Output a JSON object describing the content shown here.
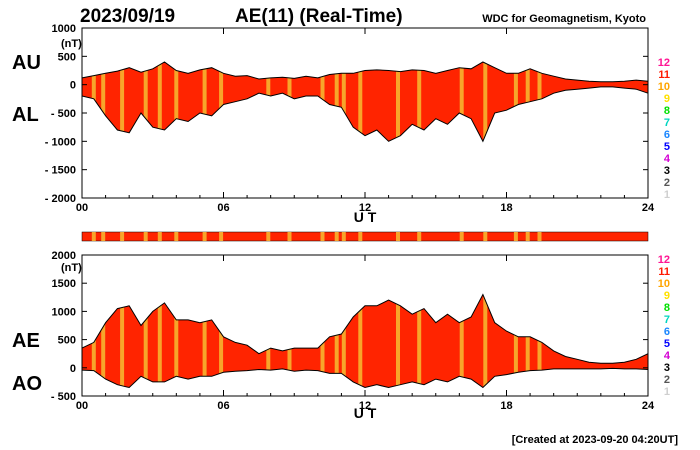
{
  "header": {
    "date": "2023/09/19",
    "title": "AE(11) (Real-Time)",
    "source": "WDC for Geomagnetism, Kyoto"
  },
  "footer": {
    "created": "[Created at 2023-09-20 04:20UT]"
  },
  "colors": {
    "fill": "#ff2400",
    "highlight": "#f7a52a",
    "outline": "#000000",
    "frame": "#000000"
  },
  "station_legend": {
    "labels": [
      "12",
      "11",
      "10",
      "9",
      "8",
      "7",
      "6",
      "5",
      "4",
      "3",
      "2",
      "1"
    ],
    "colors": [
      "#ff1493",
      "#ff1a00",
      "#ffa500",
      "#ffe100",
      "#00e000",
      "#00d5c0",
      "#1a86ff",
      "#0000ff",
      "#d400d4",
      "#000000",
      "#555555",
      "#cfcfcf"
    ]
  },
  "chart_data": [
    {
      "type": "area",
      "series": [
        {
          "name": "AU"
        },
        {
          "name": "AL"
        }
      ],
      "xlabel": "U T",
      "ylabel": "(nT)",
      "ylim": [
        -2000,
        1000
      ],
      "xlim": [
        0,
        24
      ],
      "yticks": [
        1000,
        500,
        0,
        -500,
        -1000,
        -1500,
        -2000
      ],
      "yticklabels": [
        "1000",
        "500",
        "0",
        "- 500",
        "- 1000",
        "- 1500",
        "- 2000"
      ],
      "xticks": [
        0,
        6,
        12,
        18,
        24
      ],
      "xticklabels": [
        "00",
        "06",
        "12",
        "18",
        "24"
      ],
      "x": [
        0,
        0.5,
        1,
        1.5,
        2,
        2.5,
        3,
        3.5,
        4,
        4.5,
        5,
        5.5,
        6,
        6.5,
        7,
        7.5,
        8,
        8.5,
        9,
        9.5,
        10,
        10.5,
        11,
        11.5,
        12,
        12.5,
        13,
        13.5,
        14,
        14.5,
        15,
        15.5,
        16,
        16.5,
        17,
        17.5,
        18,
        18.5,
        19,
        19.5,
        20,
        20.5,
        21,
        21.5,
        22,
        22.5,
        23,
        23.5,
        24
      ],
      "au": [
        120,
        160,
        200,
        240,
        300,
        220,
        280,
        400,
        250,
        200,
        260,
        300,
        200,
        150,
        160,
        100,
        120,
        130,
        110,
        150,
        120,
        180,
        200,
        200,
        250,
        260,
        250,
        230,
        260,
        250,
        200,
        250,
        300,
        280,
        400,
        300,
        200,
        200,
        280,
        200,
        150,
        100,
        80,
        60,
        50,
        50,
        60,
        80,
        60
      ],
      "al": [
        -200,
        -250,
        -550,
        -800,
        -850,
        -500,
        -750,
        -800,
        -600,
        -650,
        -500,
        -550,
        -350,
        -300,
        -250,
        -150,
        -200,
        -150,
        -250,
        -200,
        -200,
        -350,
        -400,
        -750,
        -900,
        -800,
        -1000,
        -900,
        -700,
        -800,
        -600,
        -700,
        -500,
        -600,
        -1000,
        -500,
        -450,
        -350,
        -300,
        -250,
        -150,
        -100,
        -80,
        -60,
        -40,
        -40,
        -60,
        -80,
        -150
      ],
      "highlight_bands_hours": [
        0.5,
        0.9,
        1.7,
        2.7,
        3.3,
        4.0,
        5.2,
        5.9,
        7.9,
        8.8,
        10.2,
        10.8,
        11.1,
        11.8,
        13.4,
        14.3,
        16.1,
        17.1,
        18.4,
        18.9,
        19.4
      ]
    },
    {
      "type": "area",
      "series": [
        {
          "name": "AE"
        },
        {
          "name": "AO"
        }
      ],
      "xlabel": "U T",
      "ylabel": "(nT)",
      "ylim": [
        -500,
        2000
      ],
      "xlim": [
        0,
        24
      ],
      "yticks": [
        2000,
        1500,
        1000,
        500,
        0,
        -500
      ],
      "yticklabels": [
        "2000",
        "1500",
        "1000",
        "500",
        "0",
        "- 500"
      ],
      "xticks": [
        0,
        6,
        12,
        18,
        24
      ],
      "xticklabels": [
        "00",
        "06",
        "12",
        "18",
        "24"
      ],
      "x": [
        0,
        0.5,
        1,
        1.5,
        2,
        2.5,
        3,
        3.5,
        4,
        4.5,
        5,
        5.5,
        6,
        6.5,
        7,
        7.5,
        8,
        8.5,
        9,
        9.5,
        10,
        10.5,
        11,
        11.5,
        12,
        12.5,
        13,
        13.5,
        14,
        14.5,
        15,
        15.5,
        16,
        16.5,
        17,
        17.5,
        18,
        18.5,
        19,
        19.5,
        20,
        20.5,
        21,
        21.5,
        22,
        22.5,
        23,
        23.5,
        24
      ],
      "ae": [
        350,
        450,
        800,
        1050,
        1100,
        750,
        1000,
        1150,
        850,
        850,
        800,
        850,
        550,
        450,
        400,
        250,
        350,
        300,
        350,
        350,
        350,
        550,
        600,
        900,
        1100,
        1100,
        1200,
        1100,
        950,
        1050,
        800,
        950,
        800,
        900,
        1300,
        800,
        650,
        550,
        550,
        450,
        300,
        200,
        150,
        100,
        80,
        80,
        100,
        150,
        250
      ],
      "ao": [
        -40,
        -50,
        -200,
        -300,
        -350,
        -150,
        -250,
        -250,
        -150,
        -200,
        -150,
        -150,
        -80,
        -60,
        -50,
        -30,
        -40,
        -20,
        -60,
        -40,
        -50,
        -100,
        -100,
        -250,
        -350,
        -300,
        -350,
        -300,
        -250,
        -300,
        -200,
        -250,
        -150,
        -200,
        -350,
        -150,
        -120,
        -80,
        -50,
        -40,
        -20,
        -20,
        -20,
        -20,
        -20,
        -10,
        -20,
        -20,
        -30
      ],
      "highlight_bands_hours": [
        0.5,
        0.9,
        1.7,
        2.7,
        3.3,
        4.0,
        5.2,
        5.9,
        7.9,
        8.8,
        10.2,
        10.8,
        11.1,
        11.8,
        13.4,
        14.3,
        16.1,
        17.1,
        18.4,
        18.9,
        19.4
      ]
    }
  ]
}
